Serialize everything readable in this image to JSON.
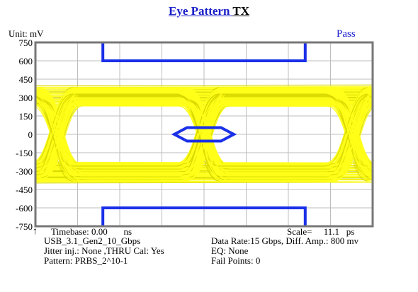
{
  "window": {
    "title_part1": "Eye  Pattern ",
    "title_part2": "TX"
  },
  "unit_label": "Unit: mV",
  "status": "Pass",
  "y_ticks": [
    "750",
    "600",
    "450",
    "300",
    "150",
    "0",
    "-150",
    "-300",
    "-450",
    "-600",
    "-750"
  ],
  "timebase": {
    "label": "Timebase:",
    "value": "0.00",
    "unit": "ns"
  },
  "scale": {
    "label": "Scale=",
    "value": "11.1",
    "unit": "ps"
  },
  "info_left": [
    "USB_3.1_Gen2_10_Gbps",
    "Jitter inj.: None ,THRU Cal: Yes",
    "Pattern: PRBS_2^10-1"
  ],
  "info_right": [
    "Data Rate:15 Gbps, Diff. Amp.: 800 mv",
    "EQ: None",
    "Fail Points: 0"
  ],
  "colors": {
    "title_blue": "#1a20c8",
    "eye_yellow": "#ffff1a",
    "eye_shadow": "#d8d800",
    "mask_blue": "#1a30e8",
    "grid": "#bdbdbd",
    "frame": "#777777"
  },
  "chart_data": {
    "type": "eye-diagram",
    "ylabel": "Unit: mV",
    "ylim": [
      -750,
      750
    ],
    "y_ticks": [
      750,
      600,
      450,
      300,
      150,
      0,
      -150,
      -300,
      -450,
      -600,
      -750
    ],
    "grid": true,
    "signal_levels_mv": [
      380,
      -380
    ],
    "eye_center_mv": 0,
    "inner_mask_height_mv": [
      -55,
      55
    ],
    "upper_mask_limit_mv": 600,
    "lower_mask_limit_mv": -600,
    "result": "Pass"
  }
}
